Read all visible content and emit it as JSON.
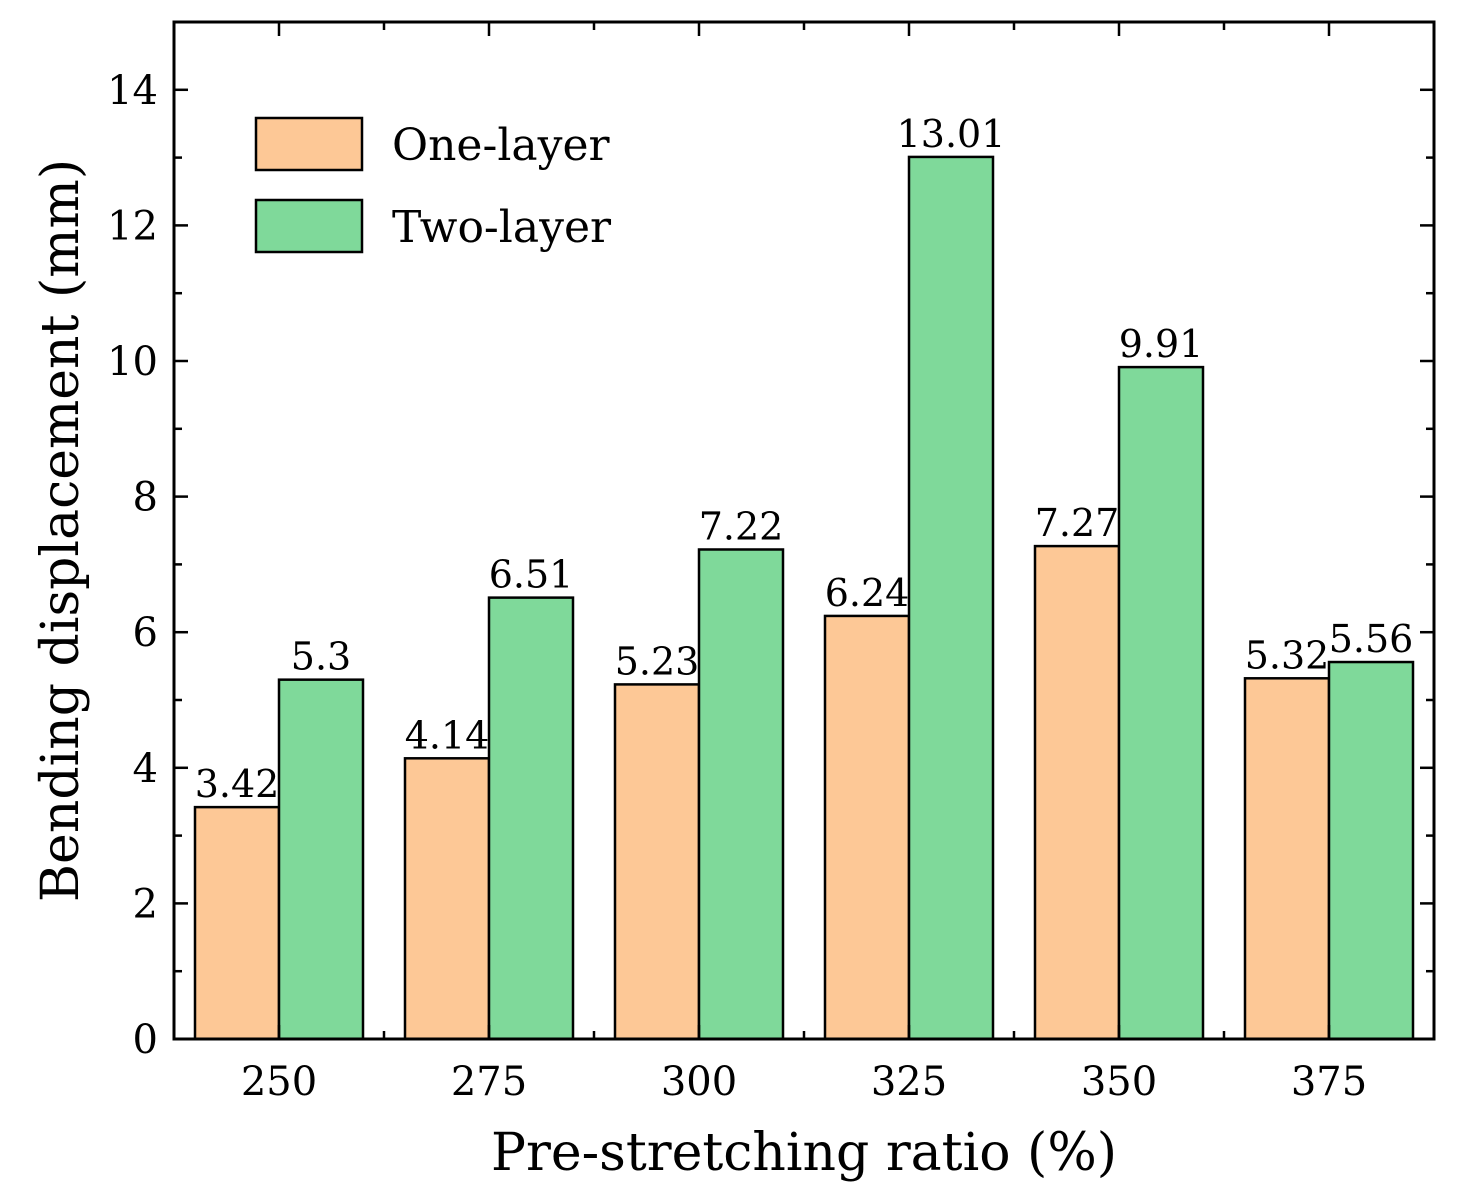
{
  "chart_data": {
    "type": "bar",
    "title": "",
    "xlabel": "Pre-stretching ratio (%)",
    "ylabel": "Bending displacement (mm)",
    "categories": [
      "250",
      "275",
      "300",
      "325",
      "350",
      "375"
    ],
    "series": [
      {
        "name": "One-layer",
        "color": "#FDC896",
        "values": [
          3.42,
          4.14,
          5.23,
          6.24,
          7.27,
          5.32
        ],
        "labels": [
          "3.42",
          "4.14",
          "5.23",
          "6.24",
          "7.27",
          "5.32"
        ]
      },
      {
        "name": "Two-layer",
        "color": "#7FD99A",
        "values": [
          5.3,
          6.51,
          7.22,
          13.01,
          9.91,
          5.56
        ],
        "labels": [
          "5.3",
          "6.51",
          "7.22",
          "13.01",
          "9.91",
          "5.56"
        ]
      }
    ],
    "ylim": [
      0,
      15
    ],
    "yticks": [
      "0",
      "2",
      "4",
      "6",
      "8",
      "10",
      "12",
      "14"
    ],
    "grid": false,
    "legend_position": "top-left"
  }
}
